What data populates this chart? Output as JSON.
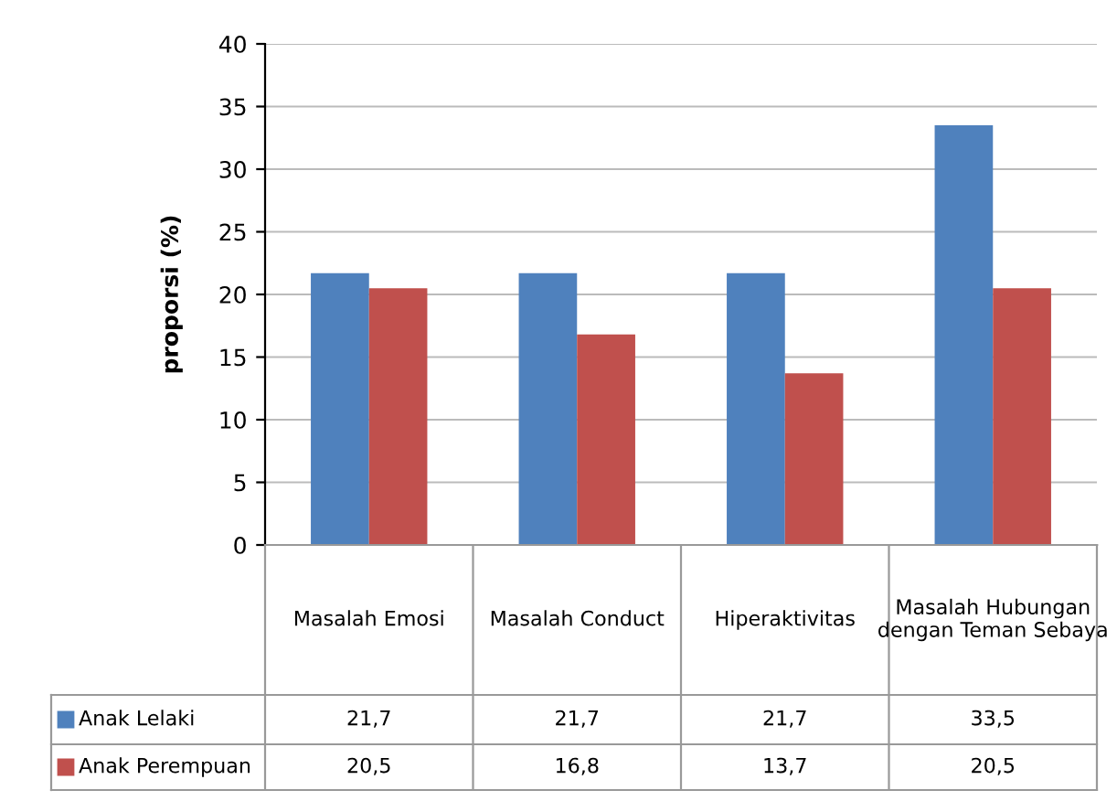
{
  "chart_data": {
    "type": "bar",
    "ylabel": "proporsi (%)",
    "categories": [
      "Masalah Emosi",
      "Masalah Conduct",
      "Hiperaktivitas",
      "Masalah Hubungan dengan Teman Sebaya"
    ],
    "series": [
      {
        "name": "Anak Lelaki",
        "color": "#4f81bd",
        "values": [
          21.7,
          21.7,
          21.7,
          33.5
        ],
        "value_labels": [
          "21,7",
          "21,7",
          "21,7",
          "33,5"
        ]
      },
      {
        "name": "Anak Perempuan",
        "color": "#c0504d",
        "values": [
          20.5,
          16.8,
          13.7,
          20.5
        ],
        "value_labels": [
          "20,5",
          "16,8",
          "13,7",
          "20,5"
        ]
      }
    ],
    "ylim": [
      0,
      40
    ],
    "yticks": [
      0,
      5,
      10,
      15,
      20,
      25,
      30,
      35,
      40
    ],
    "grid": "y",
    "legend": "bottom"
  }
}
